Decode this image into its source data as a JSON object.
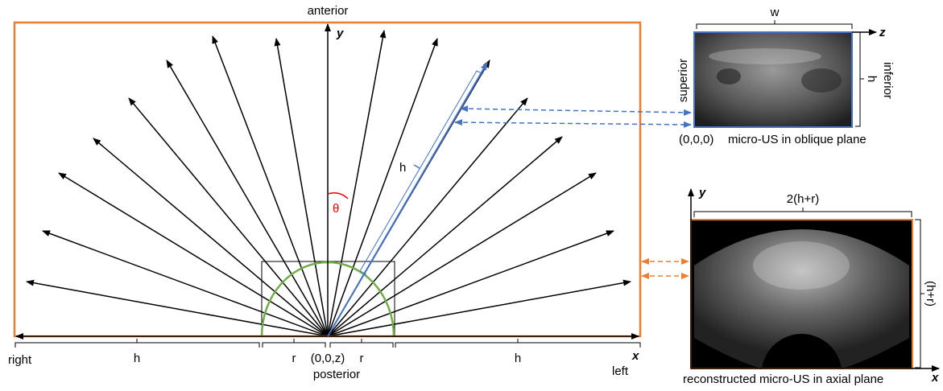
{
  "fan": {
    "anterior": "anterior",
    "posterior": "posterior",
    "right": "right",
    "left": "left",
    "y_axis": "y",
    "x_axis": "x",
    "h_left": "h",
    "r_left": "r",
    "origin": "(0,0,z)",
    "r_right": "r",
    "h_right": "h",
    "h_probe": "h",
    "theta": "θ"
  },
  "oblique": {
    "w": "w",
    "z_axis": "z",
    "superior": "superior",
    "inferior": "inferior",
    "h": "h",
    "origin": "(0,0,0)",
    "caption": "micro-US in oblique plane"
  },
  "axial": {
    "y_axis": "y",
    "width": "2(h+r)",
    "height": "(h+r)",
    "x_axis": "x",
    "caption": "reconstructed micro-US in axial plane"
  }
}
